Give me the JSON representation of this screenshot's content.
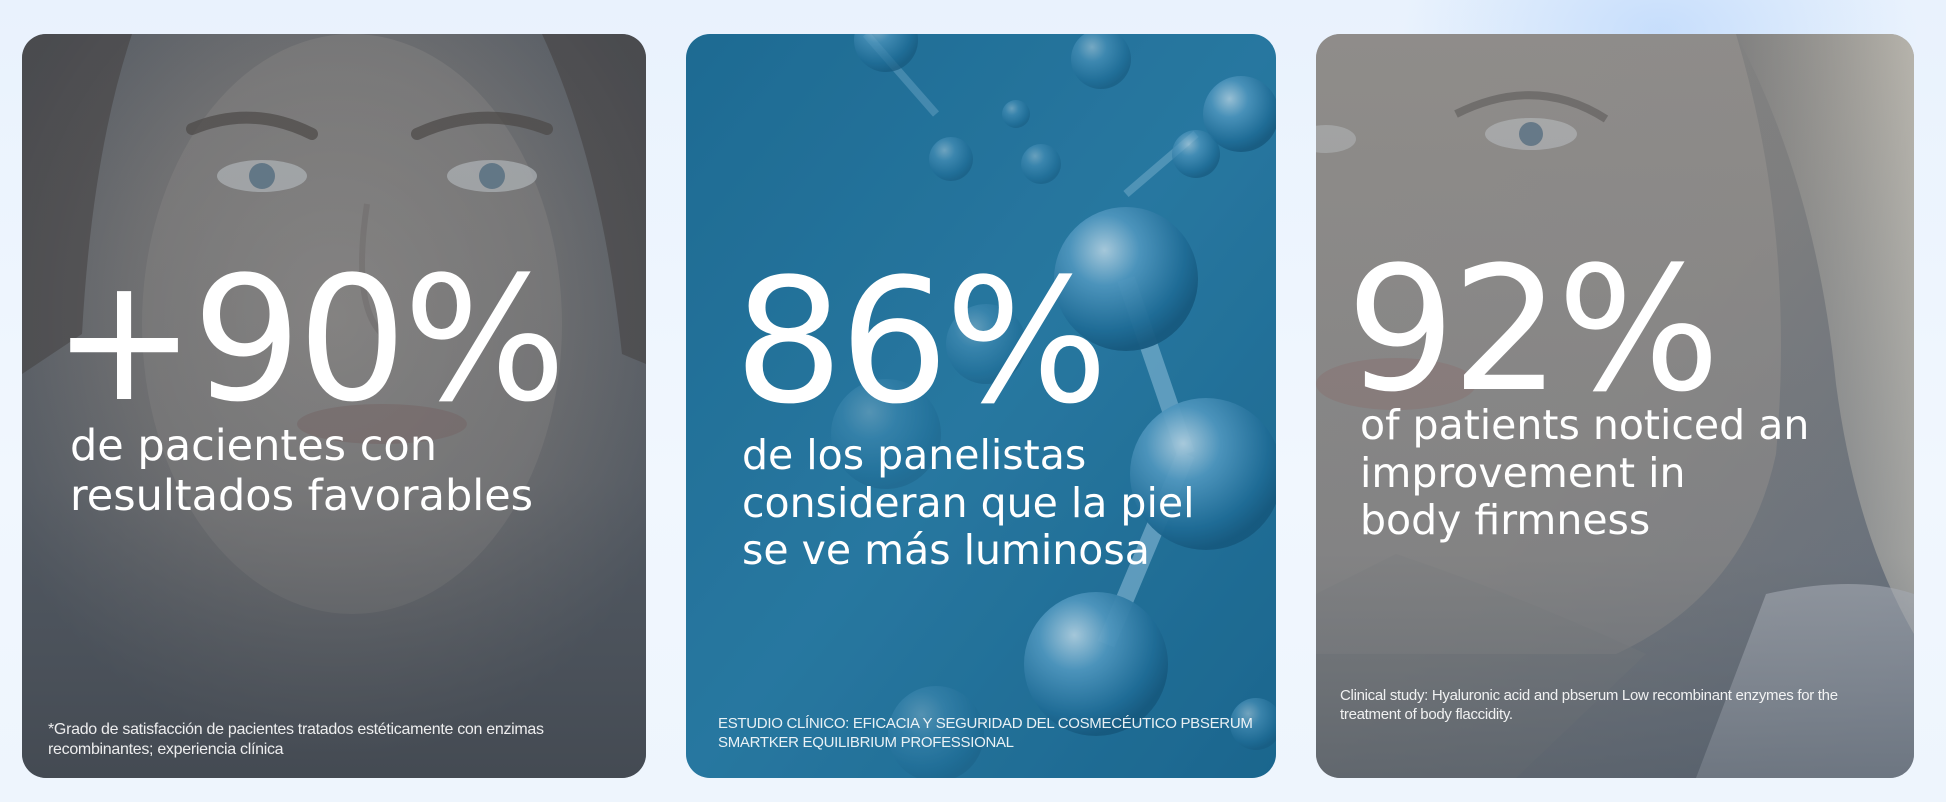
{
  "cards": [
    {
      "stat": "+90%",
      "description": "de pacientes con\nresultados favorables",
      "footnote": "*Grado de satisfacción de pacientes tratados estéticamente con enzimas\nrecombinantes; experiencia clínica",
      "image": "woman-face-portrait",
      "overlay_color": "#5b6470"
    },
    {
      "stat": "86%",
      "description": "de los panelistas\nconsideran que la piel\nse ve más luminosa",
      "footnote": "ESTUDIO CLÍNICO: EFICACIA Y SEGURIDAD DEL COSMECÉUTICO PBSERUM\nSMARTKER EQUILIBRIUM PROFESSIONAL",
      "image": "blue-molecules",
      "overlay_color": "#1f6f9a"
    },
    {
      "stat": "92%",
      "description": "of patients noticed an\nimprovement in\nbody firmness",
      "footnote": "Clinical study: Hyaluronic acid and pbserum Low recombinant enzymes for the\ntreatment of body flaccidity.",
      "image": "mature-woman-portrait",
      "overlay_color": "#6c7684"
    }
  ]
}
